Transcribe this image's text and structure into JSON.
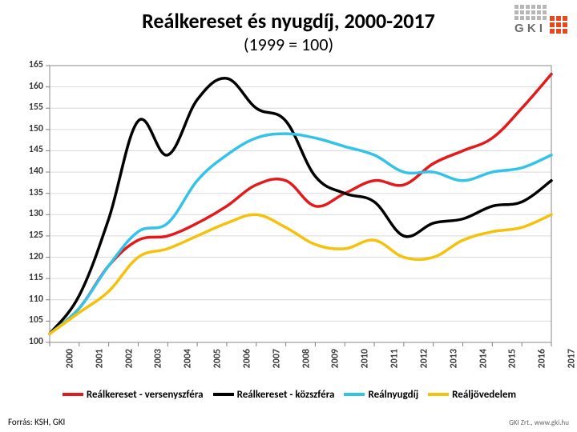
{
  "title": {
    "text": "Reálkereset és nyugdíj, 2000-2017",
    "fontsize": 26
  },
  "subtitle": {
    "text": "(1999 = 100)",
    "fontsize": 22
  },
  "logo": {
    "name": "GKI",
    "brand_color": "#e24a1f",
    "grid_color": "#b7b7b7",
    "text_color": "#6e6e6e"
  },
  "source": {
    "text": "Forrás: KSH, GKI"
  },
  "footer_right": {
    "text": "GKI Zrt., www.gki.hu"
  },
  "chart": {
    "type": "line",
    "background_color": "#ffffff",
    "plot_border_color": "#9c9c9c",
    "grid_color": "#d9d9d9",
    "axis_color": "#808080",
    "tick_font_color": "#595959",
    "tick_fontsize": 12,
    "tick_fontweight": "bold",
    "line_width": 3.5,
    "smooth": true,
    "x": {
      "categories": [
        "2000",
        "2001",
        "2002",
        "2003",
        "2004",
        "2005",
        "2006",
        "2007",
        "2008",
        "2009",
        "2010",
        "2011",
        "2012",
        "2013",
        "2014",
        "2015",
        "2016",
        "2017"
      ]
    },
    "y": {
      "min": 100,
      "max": 165,
      "step": 5
    },
    "series": [
      {
        "id": "versenyszfera",
        "label": "Reálkereset - versenyszféra",
        "color": "#e31a1c",
        "values": [
          102,
          108,
          118,
          124,
          125,
          128,
          132,
          137,
          138,
          132,
          135,
          138,
          137,
          142,
          145,
          148,
          155,
          163
        ]
      },
      {
        "id": "kozszfera",
        "label": "Reálkereset - közszféra",
        "color": "#000000",
        "values": [
          102,
          111,
          129,
          152,
          144,
          157,
          162,
          155,
          152,
          139,
          135,
          133,
          125,
          128,
          129,
          132,
          133,
          138
        ]
      },
      {
        "id": "nyugdij",
        "label": "Reálnyugdíj",
        "color": "#33c3e8",
        "values": [
          102,
          108,
          118,
          126,
          128,
          138,
          144,
          148,
          149,
          148,
          146,
          144,
          140,
          140,
          138,
          140,
          141,
          144
        ]
      },
      {
        "id": "jovedelem",
        "label": "Reáljövedelem",
        "color": "#f4c20d",
        "values": [
          102,
          107,
          112,
          120,
          122,
          125,
          128,
          130,
          127,
          123,
          122,
          124,
          120,
          120,
          124,
          126,
          127,
          130
        ]
      }
    ]
  },
  "legend": {
    "font_size": 13,
    "font_weight": "bold",
    "swatch_width": 26,
    "swatch_height": 4
  }
}
